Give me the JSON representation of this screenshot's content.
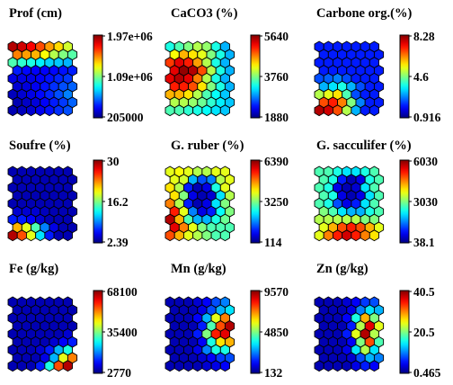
{
  "figure": {
    "type": "som-component-planes",
    "colormap": "jet",
    "colors": {
      "low": "#0000a0",
      "mid": "#00ffff",
      "high": "#a00000",
      "hex_edge": "#000000"
    }
  },
  "chart_data": [
    {
      "type": "heatmap",
      "title": "Prof (cm)",
      "ticks": [
        "1.97e+06",
        "1.09e+06",
        "205000"
      ],
      "vmin": 205000,
      "vmax": 1970000,
      "grid": [
        [
          0.95,
          0.92,
          0.88,
          0.8,
          0.72,
          0.66,
          0.58
        ],
        [
          0.75,
          0.72,
          0.7,
          0.62,
          0.55,
          0.5,
          0.46
        ],
        [
          0.45,
          0.42,
          0.4,
          0.36,
          0.33,
          0.32,
          0.3
        ],
        [
          0.15,
          0.13,
          0.12,
          0.12,
          0.13,
          0.14,
          0.15
        ],
        [
          0.1,
          0.1,
          0.1,
          0.12,
          0.14,
          0.16,
          0.18
        ],
        [
          0.08,
          0.09,
          0.11,
          0.14,
          0.17,
          0.2,
          0.22
        ],
        [
          0.06,
          0.08,
          0.1,
          0.13,
          0.16,
          0.2,
          0.25
        ],
        [
          0.05,
          0.07,
          0.09,
          0.12,
          0.15,
          0.18,
          0.22
        ],
        [
          0.05,
          0.06,
          0.08,
          0.11,
          0.14,
          0.17,
          0.2
        ]
      ]
    },
    {
      "type": "heatmap",
      "title": "CaCO3 (%)",
      "ticks": [
        "5640",
        "3760",
        "1880"
      ],
      "vmin": 1880,
      "vmax": 5640,
      "grid": [
        [
          0.4,
          0.45,
          0.5,
          0.55,
          0.52,
          0.4,
          0.3
        ],
        [
          0.62,
          0.7,
          0.65,
          0.6,
          0.5,
          0.4,
          0.3
        ],
        [
          0.82,
          0.9,
          0.85,
          0.72,
          0.55,
          0.4,
          0.3
        ],
        [
          0.9,
          0.98,
          0.95,
          0.8,
          0.55,
          0.4,
          0.3
        ],
        [
          0.9,
          0.95,
          0.9,
          0.75,
          0.55,
          0.4,
          0.3
        ],
        [
          0.85,
          0.85,
          0.8,
          0.65,
          0.5,
          0.4,
          0.3
        ],
        [
          0.7,
          0.7,
          0.65,
          0.55,
          0.45,
          0.38,
          0.32
        ],
        [
          0.55,
          0.55,
          0.52,
          0.48,
          0.42,
          0.36,
          0.32
        ],
        [
          0.45,
          0.45,
          0.42,
          0.4,
          0.38,
          0.35,
          0.32
        ]
      ]
    },
    {
      "type": "heatmap",
      "title": "Carbone org.(%)",
      "ticks": [
        "8.28",
        "4.6",
        "0.916"
      ],
      "vmin": 0.916,
      "vmax": 8.28,
      "grid": [
        [
          0.15,
          0.15,
          0.15,
          0.15,
          0.15,
          0.15,
          0.15
        ],
        [
          0.15,
          0.15,
          0.15,
          0.15,
          0.15,
          0.15,
          0.15
        ],
        [
          0.15,
          0.15,
          0.15,
          0.15,
          0.15,
          0.15,
          0.15
        ],
        [
          0.15,
          0.15,
          0.15,
          0.15,
          0.15,
          0.15,
          0.15
        ],
        [
          0.2,
          0.22,
          0.25,
          0.2,
          0.15,
          0.15,
          0.15
        ],
        [
          0.3,
          0.35,
          0.4,
          0.3,
          0.2,
          0.15,
          0.15
        ],
        [
          0.55,
          0.6,
          0.65,
          0.45,
          0.2,
          0.15,
          0.15
        ],
        [
          0.8,
          0.85,
          0.75,
          0.5,
          0.25,
          0.15,
          0.15
        ],
        [
          0.95,
          0.92,
          0.8,
          0.55,
          0.3,
          0.15,
          0.15
        ]
      ]
    },
    {
      "type": "heatmap",
      "title": "Soufre (%)",
      "ticks": [
        "30",
        "16.2",
        "2.39"
      ],
      "vmin": 2.39,
      "vmax": 30,
      "grid": [
        [
          0.05,
          0.05,
          0.05,
          0.05,
          0.05,
          0.05,
          0.05
        ],
        [
          0.05,
          0.05,
          0.05,
          0.05,
          0.05,
          0.05,
          0.05
        ],
        [
          0.05,
          0.05,
          0.05,
          0.05,
          0.05,
          0.05,
          0.05
        ],
        [
          0.05,
          0.05,
          0.05,
          0.05,
          0.05,
          0.05,
          0.05
        ],
        [
          0.05,
          0.05,
          0.05,
          0.05,
          0.05,
          0.05,
          0.05
        ],
        [
          0.08,
          0.08,
          0.08,
          0.06,
          0.05,
          0.05,
          0.05
        ],
        [
          0.15,
          0.15,
          0.12,
          0.08,
          0.05,
          0.05,
          0.05
        ],
        [
          0.7,
          0.6,
          0.45,
          0.25,
          0.1,
          0.05,
          0.05
        ],
        [
          0.95,
          0.8,
          0.6,
          0.35,
          0.15,
          0.05,
          0.05
        ]
      ]
    },
    {
      "type": "heatmap",
      "title": "G. ruber (%)",
      "ticks": [
        "6390",
        "3250",
        "114"
      ],
      "vmin": 114,
      "vmax": 6390,
      "grid": [
        [
          0.6,
          0.62,
          0.6,
          0.55,
          0.55,
          0.6,
          0.6
        ],
        [
          0.6,
          0.58,
          0.3,
          0.2,
          0.25,
          0.55,
          0.6
        ],
        [
          0.65,
          0.55,
          0.15,
          0.05,
          0.1,
          0.4,
          0.6
        ],
        [
          0.65,
          0.5,
          0.1,
          0.05,
          0.08,
          0.35,
          0.55
        ],
        [
          0.75,
          0.55,
          0.15,
          0.05,
          0.1,
          0.35,
          0.5
        ],
        [
          0.85,
          0.6,
          0.25,
          0.1,
          0.15,
          0.38,
          0.5
        ],
        [
          0.95,
          0.7,
          0.45,
          0.3,
          0.3,
          0.4,
          0.48
        ],
        [
          0.9,
          0.75,
          0.6,
          0.5,
          0.45,
          0.45,
          0.45
        ],
        [
          0.8,
          0.7,
          0.6,
          0.55,
          0.5,
          0.45,
          0.45
        ]
      ]
    },
    {
      "type": "heatmap",
      "title": "G. sacculifer (%)",
      "ticks": [
        "6030",
        "3030",
        "38.1"
      ],
      "vmin": 38.1,
      "vmax": 6030,
      "grid": [
        [
          0.45,
          0.45,
          0.4,
          0.35,
          0.35,
          0.4,
          0.45
        ],
        [
          0.45,
          0.4,
          0.15,
          0.05,
          0.1,
          0.4,
          0.45
        ],
        [
          0.45,
          0.4,
          0.1,
          0.05,
          0.08,
          0.35,
          0.45
        ],
        [
          0.45,
          0.4,
          0.1,
          0.05,
          0.1,
          0.35,
          0.45
        ],
        [
          0.45,
          0.4,
          0.2,
          0.1,
          0.15,
          0.35,
          0.45
        ],
        [
          0.5,
          0.45,
          0.35,
          0.3,
          0.3,
          0.4,
          0.45
        ],
        [
          0.55,
          0.55,
          0.55,
          0.55,
          0.55,
          0.5,
          0.5
        ],
        [
          0.6,
          0.7,
          0.8,
          0.85,
          0.8,
          0.7,
          0.6
        ],
        [
          0.6,
          0.75,
          0.85,
          0.92,
          0.85,
          0.75,
          0.65
        ]
      ]
    },
    {
      "type": "heatmap",
      "title": "Fe (g/kg)",
      "ticks": [
        "68100",
        "35400",
        "2770"
      ],
      "vmin": 2770,
      "vmax": 68100,
      "grid": [
        [
          0.05,
          0.05,
          0.05,
          0.05,
          0.05,
          0.05,
          0.05
        ],
        [
          0.05,
          0.05,
          0.05,
          0.05,
          0.05,
          0.05,
          0.05
        ],
        [
          0.05,
          0.05,
          0.05,
          0.05,
          0.05,
          0.05,
          0.05
        ],
        [
          0.05,
          0.05,
          0.05,
          0.05,
          0.05,
          0.05,
          0.05
        ],
        [
          0.05,
          0.05,
          0.05,
          0.05,
          0.05,
          0.05,
          0.08
        ],
        [
          0.05,
          0.05,
          0.05,
          0.05,
          0.08,
          0.12,
          0.15
        ],
        [
          0.05,
          0.05,
          0.05,
          0.08,
          0.15,
          0.3,
          0.4
        ],
        [
          0.05,
          0.05,
          0.05,
          0.1,
          0.3,
          0.6,
          0.75
        ],
        [
          0.05,
          0.05,
          0.05,
          0.15,
          0.4,
          0.8,
          0.95
        ]
      ]
    },
    {
      "type": "heatmap",
      "title": "Mn (g/kg)",
      "ticks": [
        "9570",
        "4850",
        "132"
      ],
      "vmin": 132,
      "vmax": 9570,
      "grid": [
        [
          0.05,
          0.05,
          0.05,
          0.08,
          0.12,
          0.2,
          0.25
        ],
        [
          0.05,
          0.05,
          0.05,
          0.1,
          0.2,
          0.3,
          0.35
        ],
        [
          0.05,
          0.05,
          0.05,
          0.12,
          0.3,
          0.6,
          0.75
        ],
        [
          0.05,
          0.05,
          0.05,
          0.15,
          0.45,
          0.8,
          0.95
        ],
        [
          0.05,
          0.05,
          0.05,
          0.15,
          0.5,
          0.85,
          0.9
        ],
        [
          0.05,
          0.05,
          0.05,
          0.12,
          0.4,
          0.65,
          0.7
        ],
        [
          0.05,
          0.05,
          0.05,
          0.1,
          0.25,
          0.4,
          0.4
        ],
        [
          0.05,
          0.05,
          0.05,
          0.08,
          0.12,
          0.18,
          0.2
        ],
        [
          0.05,
          0.05,
          0.05,
          0.05,
          0.08,
          0.1,
          0.12
        ]
      ]
    },
    {
      "type": "heatmap",
      "title": "Zn (g/kg)",
      "ticks": [
        "40.5",
        "20.5",
        "0.465"
      ],
      "vmin": 0.465,
      "vmax": 40.5,
      "grid": [
        [
          0.05,
          0.05,
          0.05,
          0.08,
          0.12,
          0.18,
          0.2
        ],
        [
          0.05,
          0.05,
          0.05,
          0.1,
          0.25,
          0.35,
          0.3
        ],
        [
          0.05,
          0.05,
          0.05,
          0.12,
          0.4,
          0.7,
          0.5
        ],
        [
          0.05,
          0.05,
          0.05,
          0.15,
          0.55,
          0.9,
          0.6
        ],
        [
          0.05,
          0.05,
          0.05,
          0.15,
          0.6,
          0.95,
          0.55
        ],
        [
          0.05,
          0.05,
          0.05,
          0.12,
          0.5,
          0.8,
          0.45
        ],
        [
          0.05,
          0.05,
          0.05,
          0.1,
          0.35,
          0.55,
          0.35
        ],
        [
          0.05,
          0.05,
          0.05,
          0.08,
          0.2,
          0.3,
          0.25
        ],
        [
          0.05,
          0.05,
          0.05,
          0.05,
          0.1,
          0.15,
          0.12
        ]
      ]
    }
  ]
}
